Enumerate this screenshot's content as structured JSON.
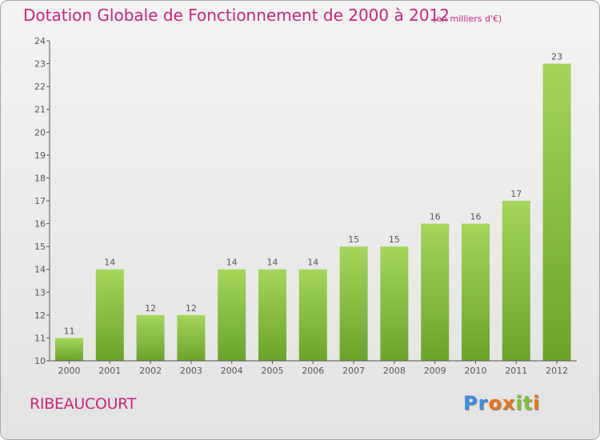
{
  "title": "Dotation Globale de Fonctionnement de 2000 à 2012",
  "subtitle": "(en milliers d'€)",
  "commune": "RIBEAUCOURT",
  "brand": {
    "letters": [
      "P",
      "r",
      "o",
      "x",
      "i",
      "t",
      "i"
    ],
    "colors": [
      "#3a8ee6",
      "#3a8ee6",
      "#e8731a",
      "#e8731a",
      "#7fc23a",
      "#7fc23a",
      "#e8731a"
    ]
  },
  "colors": {
    "title": "#c8267d",
    "bar_top": "#a4d65a",
    "bar_bottom": "#6aa42a",
    "axis": "#555555"
  },
  "chart_data": {
    "type": "bar",
    "title": "Dotation Globale de Fonctionnement de 2000 à 2012",
    "subtitle": "(en milliers d'€)",
    "categories": [
      "2000",
      "2001",
      "2002",
      "2003",
      "2004",
      "2005",
      "2006",
      "2007",
      "2008",
      "2009",
      "2010",
      "2011",
      "2012"
    ],
    "values": [
      11,
      14,
      12,
      12,
      14,
      14,
      14,
      15,
      15,
      16,
      16,
      17,
      23
    ],
    "yticks": [
      10,
      11,
      12,
      13,
      14,
      15,
      16,
      17,
      18,
      19,
      20,
      21,
      22,
      23,
      24
    ],
    "ylim": [
      10,
      24
    ],
    "xlabel": "",
    "ylabel": "",
    "grid": false,
    "legend": "none"
  }
}
